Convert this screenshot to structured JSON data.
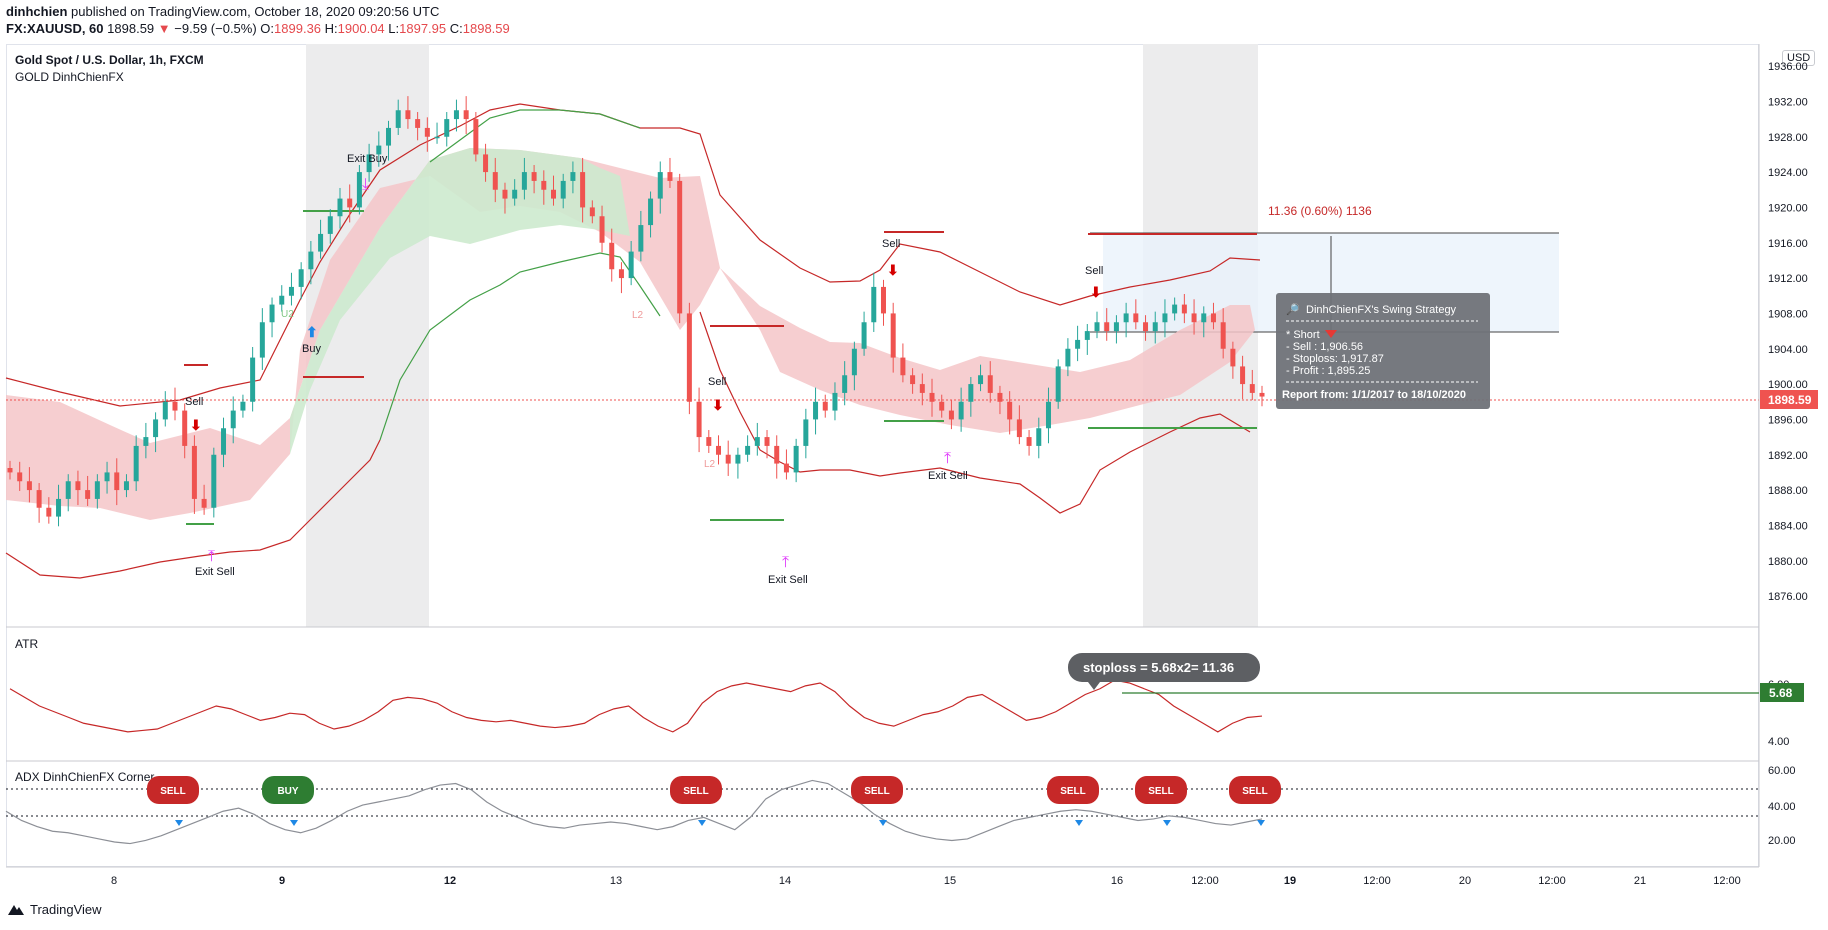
{
  "header": {
    "publisher": "dinhchien",
    "published_text": "published on TradingView.com, October 18, 2020 09:20:56 UTC",
    "symbol": "FX:XAUUSD, 60",
    "last": "1898.59",
    "change": "−9.59 (−0.5%)",
    "open_label": "O:",
    "open": "1899.36",
    "high_label": "H:",
    "high": "1900.04",
    "low_label": "L:",
    "low": "1897.95",
    "close_label": "C:",
    "close": "1898.59"
  },
  "chart_title": "Gold Spot / U.S. Dollar, 1h, FXCM",
  "indicator_title": "GOLD DinhChienFX",
  "currency": "USD",
  "price_tag": "1898.59",
  "atr_tag": "5.68",
  "measure_label": "11.36 (0.60%) 1136",
  "stoploss_bubble": "stoploss = 5.68x2= 11.36",
  "tooltip": {
    "title": "DinhChienFX's Swing Strategy",
    "line1": "* Short",
    "line2": "- Sell    : 1,906.56",
    "line3": "- Stoploss: 1,917.87",
    "line4": "- Profit   : 1,895.25",
    "line5": "Report from: 1/1/2017 to 18/10/2020"
  },
  "atr_title": "ATR",
  "adx_title": "ADX DinhChienFX Corner",
  "footer_brand": "TradingView",
  "colors": {
    "up": "#26a69a",
    "down": "#ef5350",
    "band_red": "#f4c6c8",
    "band_green": "#cdeace",
    "signal_red": "#b71c1c",
    "signal_green": "#2e7d32",
    "marker": "#e040fb"
  },
  "chart_data": [
    {
      "type": "candlestick",
      "title": "Gold Spot / U.S. Dollar, 1h, FXCM",
      "y_ticks": [
        1876,
        1880,
        1884,
        1888,
        1892,
        1896,
        1900,
        1904,
        1908,
        1912,
        1916,
        1920,
        1924,
        1928,
        1932,
        1936
      ],
      "y_tick_labels": [
        "1876.00",
        "1880.00",
        "1884.00",
        "1888.00",
        "1892.00",
        "1896.00",
        "1900.00",
        "1904.00",
        "1908.00",
        "1912.00",
        "1916.00",
        "1920.00",
        "1924.00",
        "1928.00",
        "1932.00",
        "1936.00"
      ],
      "ylim": [
        1872.5,
        1938.5
      ],
      "x_labels": [
        "8",
        "9",
        "12",
        "13",
        "14",
        "15",
        "16",
        "12:00",
        "19",
        "12:00",
        "20",
        "12:00",
        "21",
        "12:00"
      ],
      "close_path": [
        1890,
        1889,
        1888,
        1886,
        1885,
        1887,
        1889,
        1888,
        1887,
        1889,
        1890,
        1888,
        1889,
        1893,
        1894,
        1896,
        1898,
        1897,
        1893,
        1887,
        1886,
        1892,
        1895,
        1897,
        1898,
        1903,
        1907,
        1909,
        1910,
        1911,
        1913,
        1915,
        1917,
        1919,
        1921,
        1920,
        1924,
        1926,
        1927,
        1929,
        1931,
        1930,
        1929,
        1928,
        1928,
        1930,
        1931,
        1930,
        1926,
        1924,
        1922,
        1921,
        1922,
        1924,
        1923,
        1922,
        1921,
        1923,
        1924,
        1920,
        1919,
        1916,
        1913,
        1912,
        1915,
        1918,
        1921,
        1924,
        1923,
        1908,
        1898,
        1894,
        1893,
        1892,
        1891,
        1892,
        1893,
        1894,
        1893,
        1891,
        1890,
        1893,
        1896,
        1898,
        1897,
        1899,
        1901,
        1904,
        1907,
        1911,
        1908,
        1903,
        1901,
        1900,
        1899,
        1898,
        1897,
        1896,
        1898,
        1900,
        1901,
        1899,
        1898,
        1896,
        1894,
        1893,
        1895,
        1898,
        1902,
        1904,
        1905,
        1906,
        1907,
        1906,
        1907,
        1908,
        1907,
        1906,
        1907,
        1908,
        1909,
        1908,
        1907,
        1908,
        1907,
        1904,
        1902,
        1900,
        1899,
        1898.59
      ],
      "atr": {
        "title": "ATR",
        "y_tick_labels": [
          "4.00",
          "6.00"
        ],
        "last_value": "5.68",
        "values": [
          5.8,
          5.5,
          5.2,
          5.0,
          4.8,
          4.6,
          4.5,
          4.4,
          4.3,
          4.35,
          4.4,
          4.6,
          4.8,
          5.0,
          5.2,
          5.1,
          4.9,
          4.7,
          4.8,
          4.95,
          4.9,
          4.6,
          4.4,
          4.5,
          4.7,
          5.0,
          5.4,
          5.5,
          5.45,
          5.3,
          5.0,
          4.8,
          4.7,
          4.65,
          4.7,
          4.6,
          4.5,
          4.45,
          4.5,
          4.6,
          4.9,
          5.1,
          5.2,
          4.8,
          4.5,
          4.3,
          4.6,
          5.3,
          5.7,
          5.9,
          6.0,
          5.9,
          5.8,
          5.7,
          5.9,
          6.0,
          5.7,
          5.2,
          4.8,
          4.6,
          4.5,
          4.7,
          4.9,
          5.0,
          5.2,
          5.5,
          5.6,
          5.3,
          5.0,
          4.7,
          4.8,
          5.0,
          5.3,
          5.6,
          5.8,
          6.1,
          6.0,
          5.8,
          5.6,
          5.2,
          4.9,
          4.6,
          4.3,
          4.6,
          4.8,
          4.85
        ]
      },
      "adx": {
        "title": "ADX DinhChienFX Corner",
        "y_tick_labels": [
          "20.00",
          "40.00",
          "60.00"
        ],
        "signals": [
          "SELL",
          "BUY",
          "SELL",
          "SELL",
          "SELL",
          "SELL",
          "SELL"
        ],
        "values": [
          38,
          32,
          28,
          25,
          24,
          22,
          20,
          18,
          17,
          19,
          22,
          26,
          30,
          34,
          38,
          40,
          36,
          30,
          26,
          24,
          27,
          32,
          38,
          42,
          44,
          46,
          48,
          52,
          55,
          56,
          52,
          44,
          38,
          34,
          30,
          28,
          27,
          29,
          30,
          31,
          30,
          28,
          26,
          28,
          32,
          34,
          30,
          26,
          34,
          46,
          52,
          55,
          58,
          56,
          50,
          44,
          36,
          30,
          25,
          22,
          20,
          19,
          20,
          24,
          28,
          32,
          34,
          36,
          38,
          39,
          38,
          36,
          34,
          32,
          33,
          35,
          34,
          32,
          30,
          29,
          31,
          33
        ]
      },
      "annotations": [
        "Sell",
        "Exit Sell",
        "Buy",
        "Exit Buy",
        "Sell",
        "Exit Sell",
        "Sell",
        "Exit Sell",
        "Sell",
        "U2",
        "L2",
        "L2"
      ]
    }
  ]
}
